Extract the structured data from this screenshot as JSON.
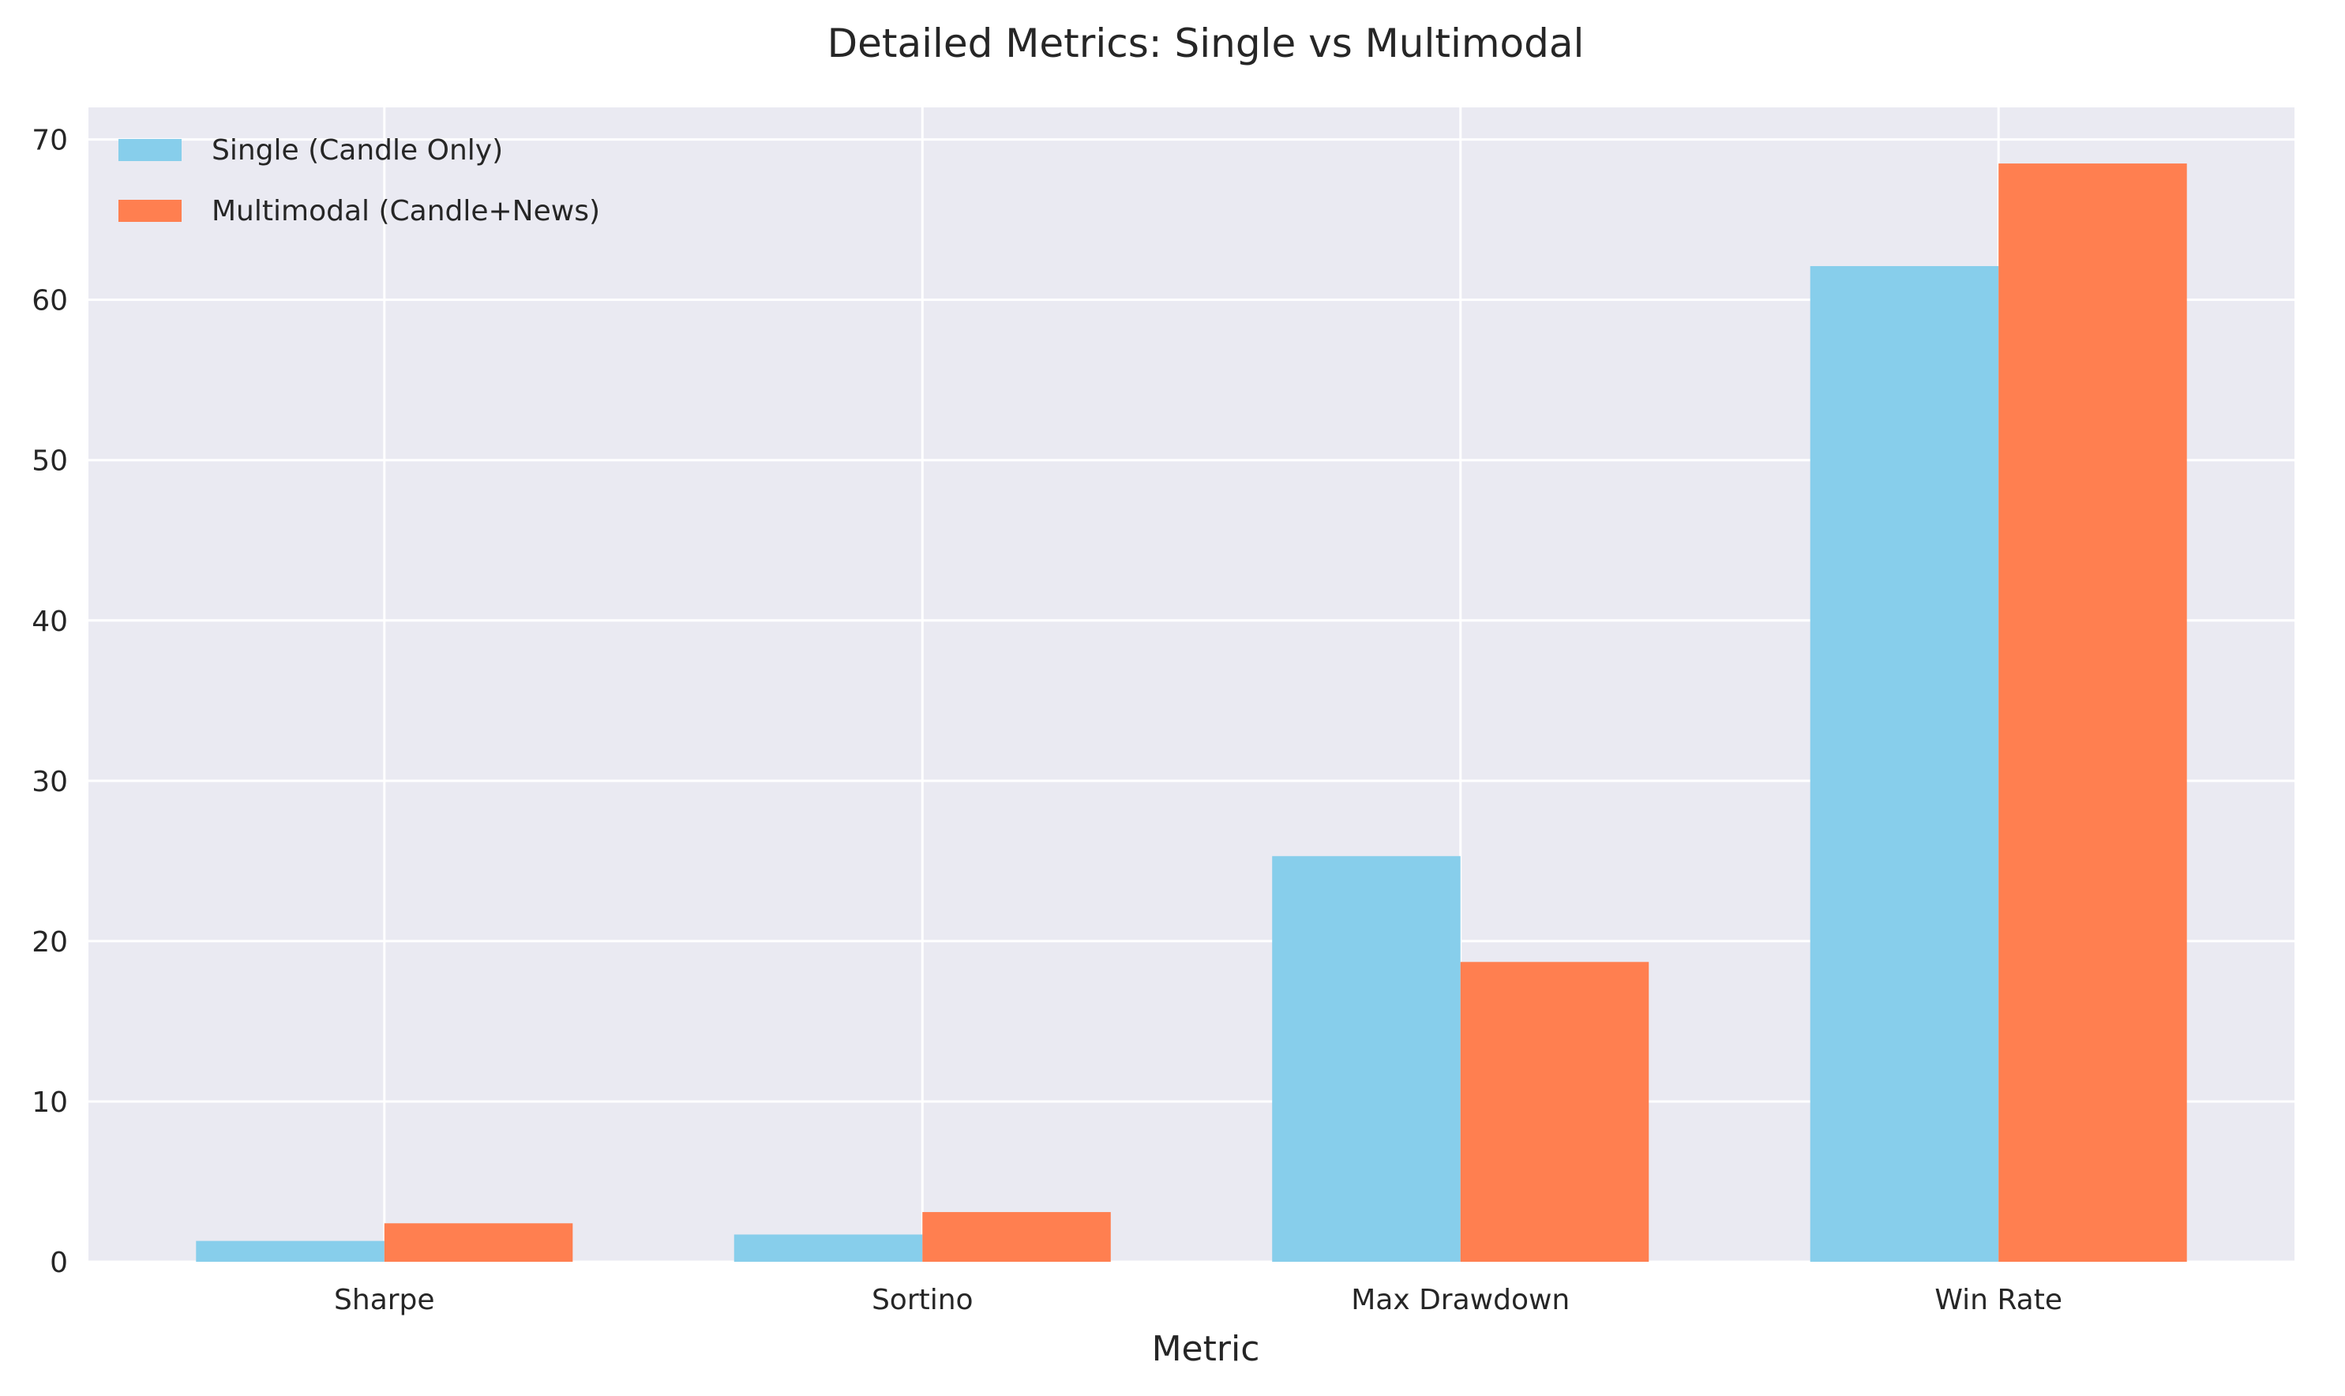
{
  "chart_data": {
    "type": "bar",
    "title": "Detailed Metrics: Single vs Multimodal",
    "xlabel": "Metric",
    "ylabel": "",
    "categories": [
      "Sharpe",
      "Sortino",
      "Max Drawdown",
      "Win Rate"
    ],
    "series": [
      {
        "name": "Single (Candle Only)",
        "color": "#87ceeb",
        "values": [
          1.3,
          1.7,
          25.3,
          62.1
        ]
      },
      {
        "name": "Multimodal (Candle+News)",
        "color": "#ff7f50",
        "values": [
          2.4,
          3.1,
          18.7,
          68.5
        ]
      }
    ],
    "ylim": [
      0,
      72
    ],
    "yticks": [
      0,
      10,
      20,
      30,
      40,
      50,
      60,
      70
    ],
    "grid": true,
    "legend": "top-left",
    "background_color": "#eaeaf2",
    "grid_color": "#ffffff"
  }
}
